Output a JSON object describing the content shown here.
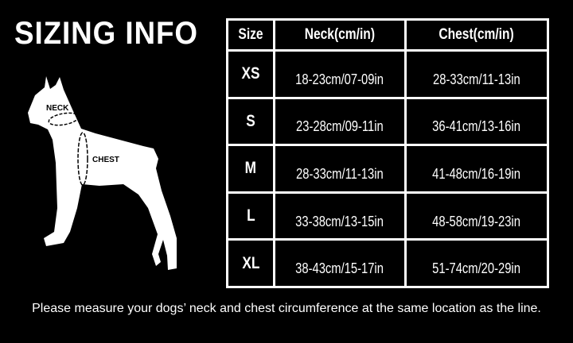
{
  "title": "SIZING INFO",
  "diagram": {
    "neck_label": "NECK",
    "chest_label": "CHEST"
  },
  "table": {
    "headers": [
      "Size",
      "Neck(cm/in)",
      "Chest(cm/in)"
    ],
    "rows": [
      {
        "size": "XS",
        "neck": "18-23cm/07-09in",
        "chest": "28-33cm/11-13in"
      },
      {
        "size": "S",
        "neck": "23-28cm/09-11in",
        "chest": "36-41cm/13-16in"
      },
      {
        "size": "M",
        "neck": "28-33cm/11-13in",
        "chest": "41-48cm/16-19in"
      },
      {
        "size": "L",
        "neck": "33-38cm/13-15in",
        "chest": "48-58cm/19-23in"
      },
      {
        "size": "XL",
        "neck": "38-43cm/15-17in",
        "chest": "51-74cm/20-29in"
      }
    ]
  },
  "note": "Please measure your dogs’  neck and chest circumference at the same location as the line.",
  "colors": {
    "background": "#000000",
    "foreground": "#ffffff"
  }
}
